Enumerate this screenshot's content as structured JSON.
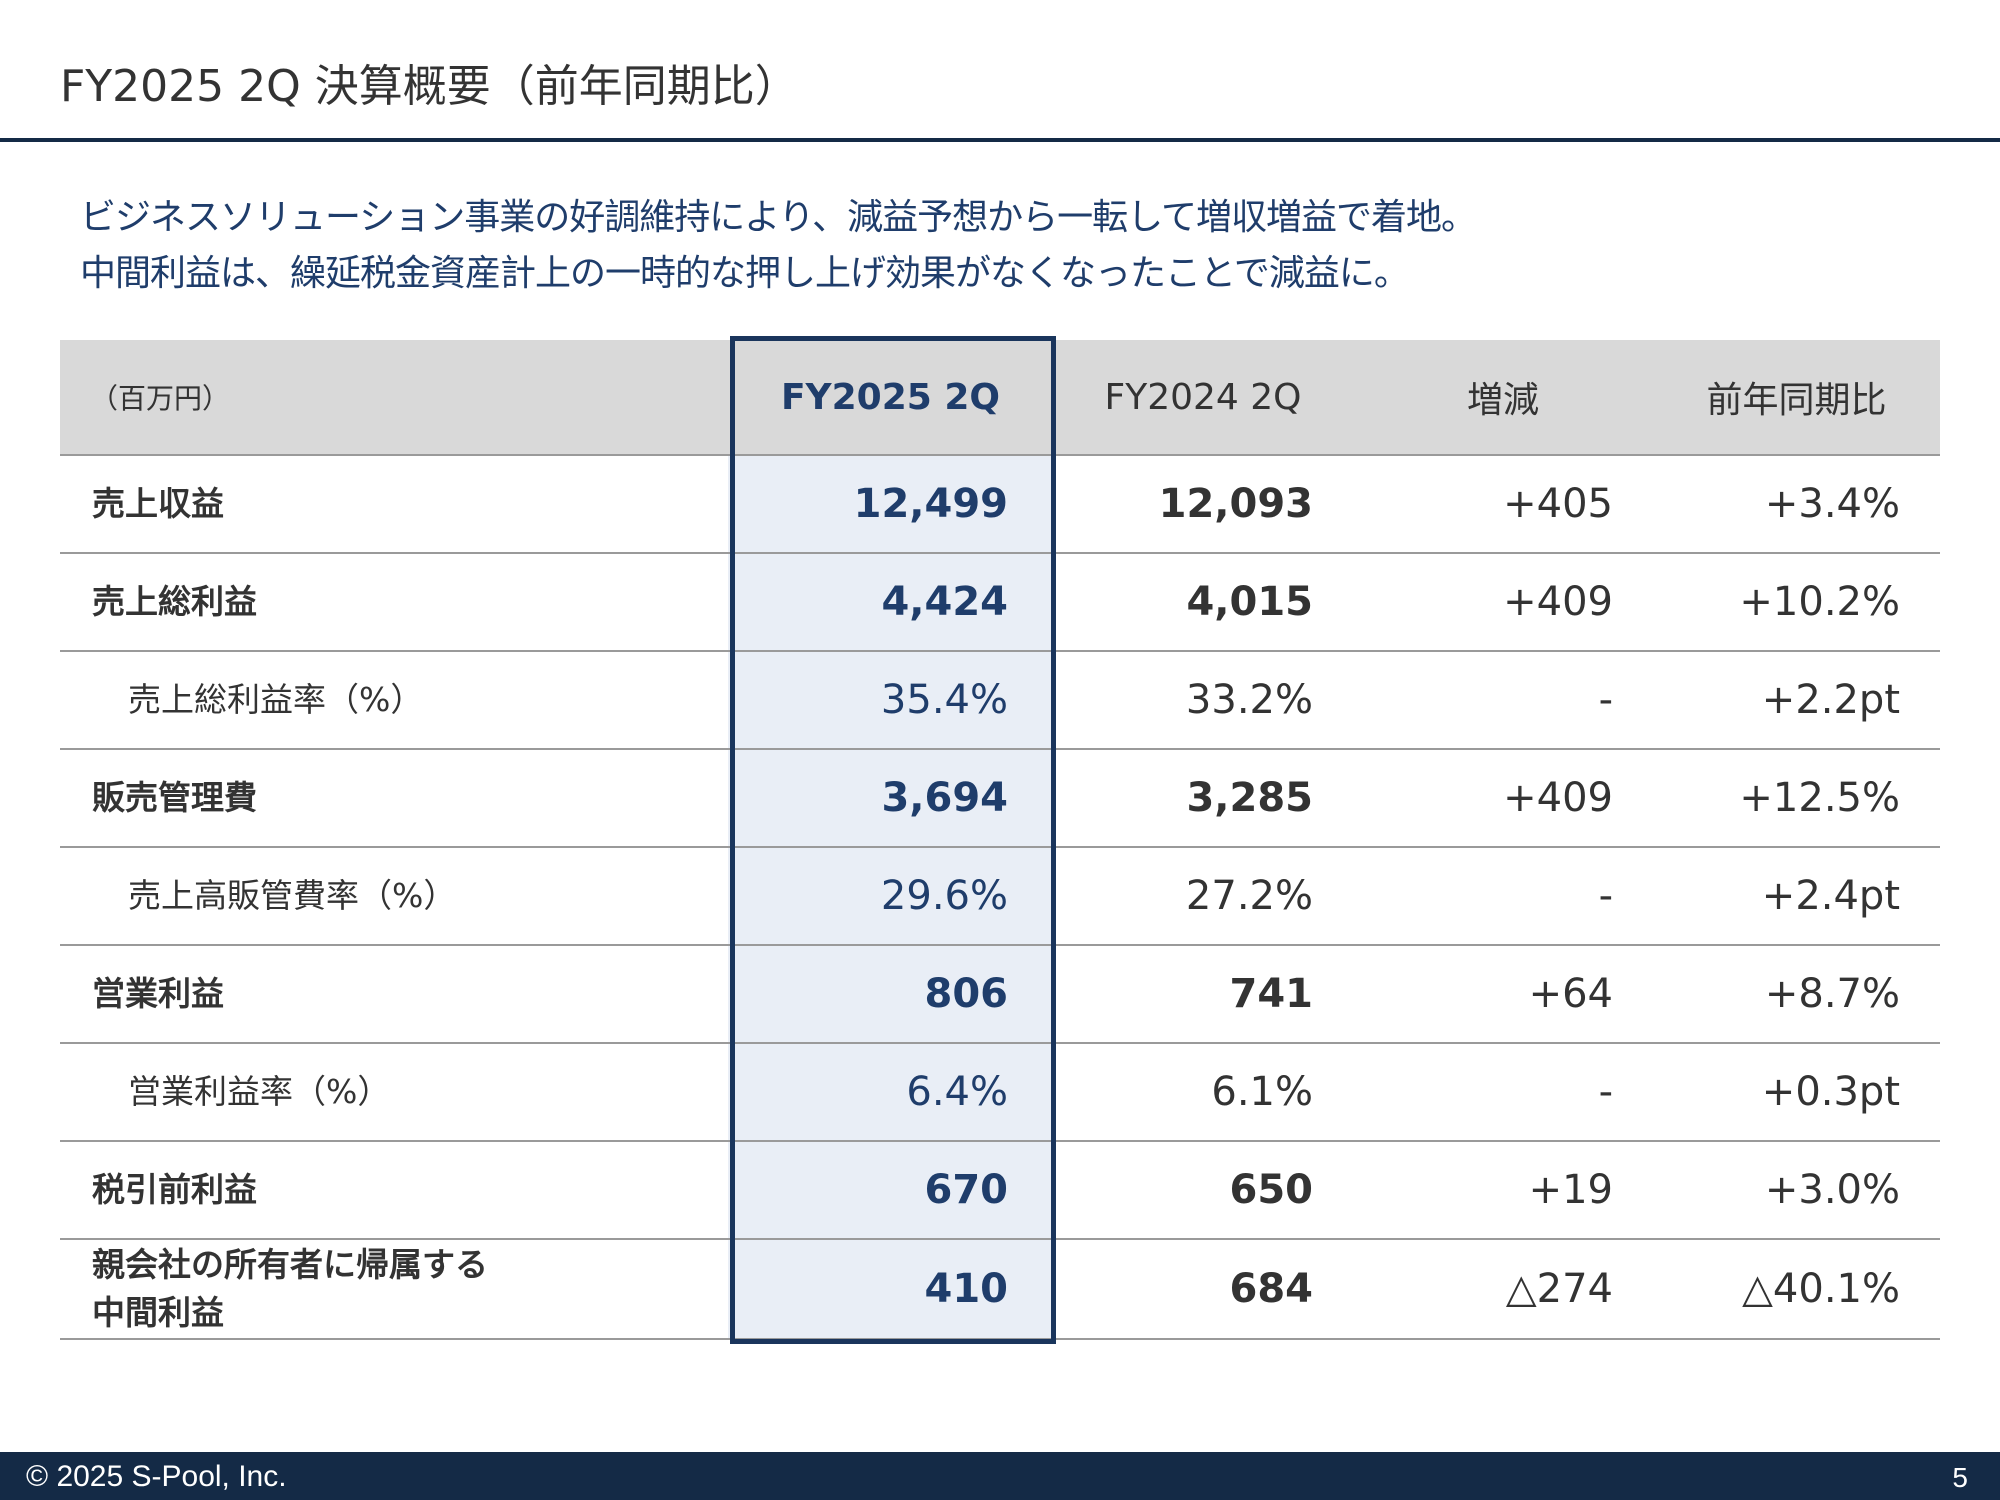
{
  "slide": {
    "title": "FY2025 2Q 決算概要（前年同期比）",
    "summary": [
      "ビジネスソリューション事業の好調維持により、減益予想から一転して増収増益で着地。",
      "中間利益は、繰延税金資産計上の一時的な押し上げ効果がなくなったことで減益に。"
    ]
  },
  "table": {
    "headers": {
      "unit": "（百万円）",
      "current": "FY2025 2Q",
      "prior": "FY2024 2Q",
      "change": "増減",
      "yoy": "前年同期比"
    },
    "rows": [
      {
        "label": "売上収益",
        "current": "12,499",
        "prior": "12,093",
        "change": "+405",
        "yoy": "+3.4%"
      },
      {
        "label": "売上総利益",
        "current": "4,424",
        "prior": "4,015",
        "change": "+409",
        "yoy": "+10.2%"
      },
      {
        "label": "売上総利益率（%）",
        "current": "35.4%",
        "prior": "33.2%",
        "change": "-",
        "yoy": "+2.2pt"
      },
      {
        "label": "販売管理費",
        "current": "3,694",
        "prior": "3,285",
        "change": "+409",
        "yoy": "+12.5%"
      },
      {
        "label": "売上高販管費率（%）",
        "current": "29.6%",
        "prior": "27.2%",
        "change": "-",
        "yoy": "+2.4pt"
      },
      {
        "label": "営業利益",
        "current": "806",
        "prior": "741",
        "change": "+64",
        "yoy": "+8.7%"
      },
      {
        "label": "営業利益率（%）",
        "current": "6.4%",
        "prior": "6.1%",
        "change": "-",
        "yoy": "+0.3pt"
      },
      {
        "label": "税引前利益",
        "current": "670",
        "prior": "650",
        "change": "+19",
        "yoy": "+3.0%"
      },
      {
        "label_line1": "親会社の所有者に帰属する",
        "label_line2": "中間利益",
        "current": "410",
        "prior": "684",
        "change": "△274",
        "yoy": "△40.1%"
      }
    ]
  },
  "colors": {
    "navy": "#142a46",
    "accent_text": "#1f3d6b",
    "highlight_fill": "#e9eef6",
    "header_fill": "#d9d9d9"
  },
  "footer": {
    "copyright": "© 2025   S-Pool, Inc.",
    "page_number": "5"
  }
}
